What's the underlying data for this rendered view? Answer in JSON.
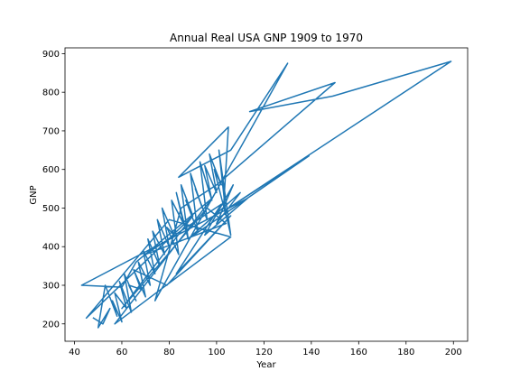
{
  "chart_data": {
    "type": "line",
    "title": "Annual Real USA GNP 1909 to 1970",
    "xlabel": "Year",
    "ylabel": "GNP",
    "xlim": [
      36,
      206
    ],
    "ylim": [
      155,
      915
    ],
    "xticks": [
      40,
      60,
      80,
      100,
      120,
      140,
      160,
      180,
      200
    ],
    "yticks": [
      200,
      300,
      400,
      500,
      600,
      700,
      800,
      900
    ],
    "grid": false,
    "legend": "none",
    "color": "#1f77b4",
    "series": [
      {
        "x": [
          48,
          52,
          55,
          50,
          53,
          58,
          56,
          60,
          57,
          62,
          59,
          64,
          61,
          66,
          63,
          68,
          65,
          70,
          67,
          72,
          69,
          74,
          71,
          76,
          73,
          78,
          75,
          80,
          77,
          82,
          79,
          84,
          81,
          86,
          83,
          88,
          85,
          90,
          87,
          92,
          89,
          94,
          91,
          96,
          93,
          98,
          95,
          100,
          97,
          102,
          99,
          104,
          101,
          106,
          103,
          105,
          84,
          106,
          130,
          74,
          85,
          100,
          150,
          114,
          149,
          199,
          105,
          139,
          88,
          110,
          100,
          107,
          95,
          113,
          43,
          60,
          66,
          98,
          57,
          106,
          80,
          45,
          90,
          60,
          96,
          104,
          70,
          102,
          83,
          106,
          79,
          65
        ],
        "y": [
          215,
          200,
          240,
          190,
          300,
          220,
          260,
          205,
          280,
          240,
          310,
          230,
          330,
          260,
          300,
          290,
          340,
          270,
          360,
          300,
          390,
          330,
          420,
          350,
          440,
          380,
          470,
          400,
          500,
          430,
          450,
          380,
          520,
          460,
          540,
          420,
          560,
          480,
          520,
          440,
          590,
          500,
          550,
          470,
          620,
          520,
          610,
          540,
          640,
          560,
          600,
          480,
          650,
          430,
          510,
          710,
          580,
          650,
          875,
          260,
          500,
          560,
          825,
          750,
          790,
          880,
          500,
          635,
          420,
          540,
          460,
          560,
          430,
          525,
          300,
          295,
          360,
          525,
          200,
          425,
          470,
          215,
          480,
          240,
          500,
          460,
          380,
          510,
          330,
          480,
          300,
          340
        ]
      }
    ]
  }
}
